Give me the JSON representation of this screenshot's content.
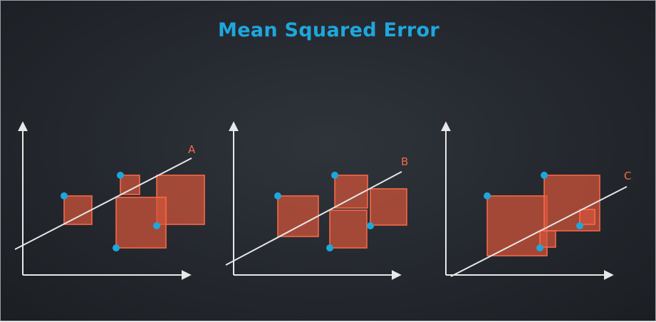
{
  "title": "Mean Squared Error",
  "colors": {
    "title": "#1ea7dc",
    "axis": "#e8e8e8",
    "line": "#e6e6e6",
    "point": "#1ea7dc",
    "square_fill": "#d4553a",
    "square_stroke": "#ff6a4a",
    "label": "#f06a4a"
  },
  "panels": [
    {
      "label": "A"
    },
    {
      "label": "B"
    },
    {
      "label": "C"
    }
  ]
}
